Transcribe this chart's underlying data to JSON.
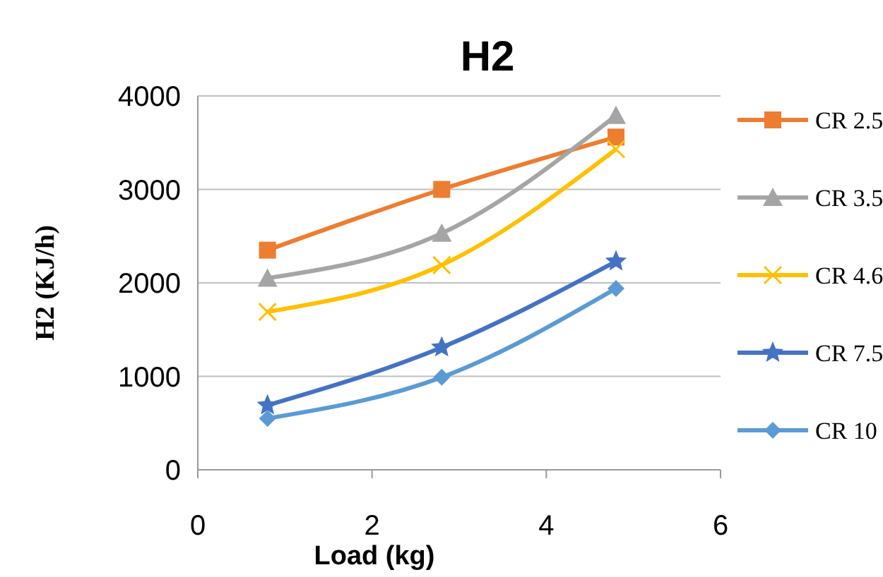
{
  "chart_data": {
    "type": "line",
    "title": "H2",
    "xlabel": "Load (kg)",
    "ylabel": "H2 (KJ/h)",
    "x": [
      0.8,
      2.8,
      4.8
    ],
    "xlim": [
      0,
      6
    ],
    "xticks": [
      0,
      2,
      4,
      6
    ],
    "ylim": [
      0,
      4000
    ],
    "yticks": [
      0,
      1000,
      2000,
      3000,
      4000
    ],
    "grid": "y",
    "legend": "right",
    "series": [
      {
        "name": "CR 2.5",
        "color": "#ed7d31",
        "marker": "square",
        "values": [
          2350,
          3000,
          3560
        ]
      },
      {
        "name": "CR 3.5",
        "color": "#a5a5a5",
        "marker": "triangle",
        "values": [
          2050,
          2530,
          3790
        ]
      },
      {
        "name": "CR 4.6",
        "color": "#ffc000",
        "marker": "cross",
        "values": [
          1690,
          2190,
          3430
        ]
      },
      {
        "name": "CR 7.5",
        "color": "#4472c4",
        "marker": "star",
        "values": [
          690,
          1310,
          2230
        ]
      },
      {
        "name": "CR 10",
        "color": "#5b9bd5",
        "marker": "diamond",
        "values": [
          550,
          990,
          1940
        ]
      }
    ]
  }
}
